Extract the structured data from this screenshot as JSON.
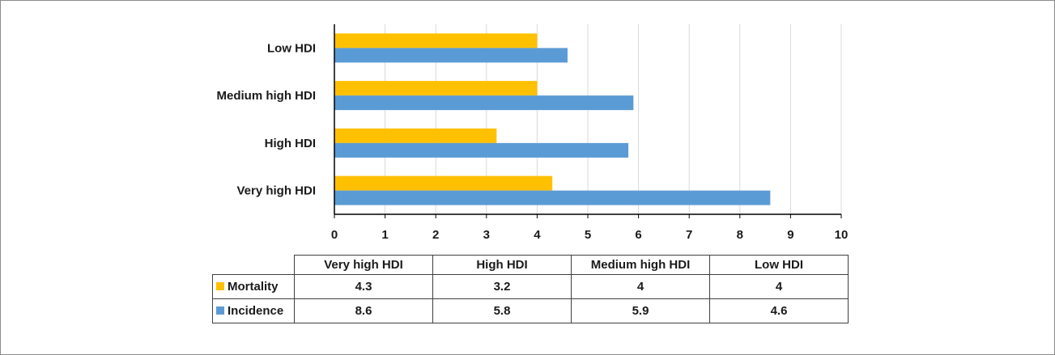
{
  "chart_data": {
    "type": "bar",
    "orientation": "horizontal",
    "categories": [
      "Very high HDI",
      "High HDI",
      "Medium high HDI",
      "Low HDI"
    ],
    "series": [
      {
        "name": "Mortality",
        "color": "#FFC000",
        "values": [
          4.3,
          3.2,
          4,
          4
        ]
      },
      {
        "name": "Incidence",
        "color": "#5B9BD5",
        "values": [
          8.6,
          5.8,
          5.9,
          4.6
        ]
      }
    ],
    "xlim": [
      0,
      10
    ],
    "x_ticks": [
      "0",
      "1",
      "2",
      "3",
      "4",
      "5",
      "6",
      "7",
      "8",
      "9",
      "10"
    ],
    "grid": true,
    "legend": "data-table-below",
    "table_values": [
      [
        "4.3",
        "3.2",
        "4",
        "4"
      ],
      [
        "8.6",
        "5.8",
        "5.9",
        "4.6"
      ]
    ]
  }
}
